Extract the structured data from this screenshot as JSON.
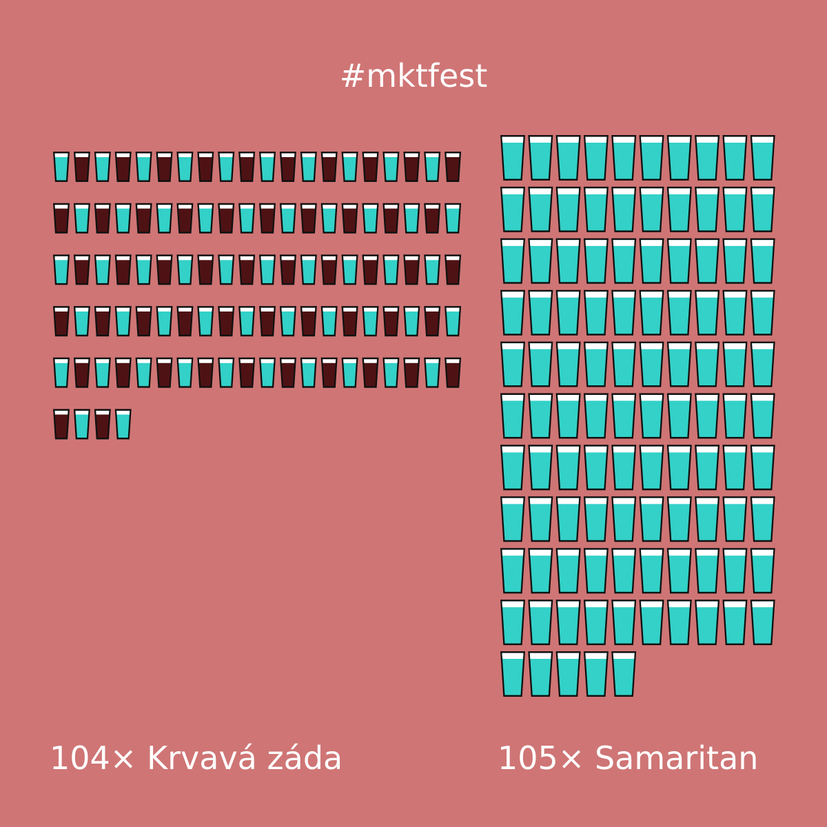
{
  "title": "#mktfest",
  "colors": {
    "background": "#cf7575",
    "cyan_drink": "#33d1c8",
    "red_drink": "#4f1214",
    "glass_rim": "#ffffff",
    "glass_outline": "#111111"
  },
  "chart_data": {
    "type": "pictograph",
    "unit": "glass",
    "groups": [
      {
        "count": 104,
        "label": "104× Krvavá záda",
        "icon": "two-tone-shot-glass",
        "pattern": [
          "cyan_drink",
          "red_drink"
        ],
        "per_row": 20
      },
      {
        "count": 105,
        "label": "105× Samaritan",
        "icon": "cyan-glass",
        "pattern": [
          "cyan_drink"
        ],
        "per_row": 10
      }
    ]
  }
}
